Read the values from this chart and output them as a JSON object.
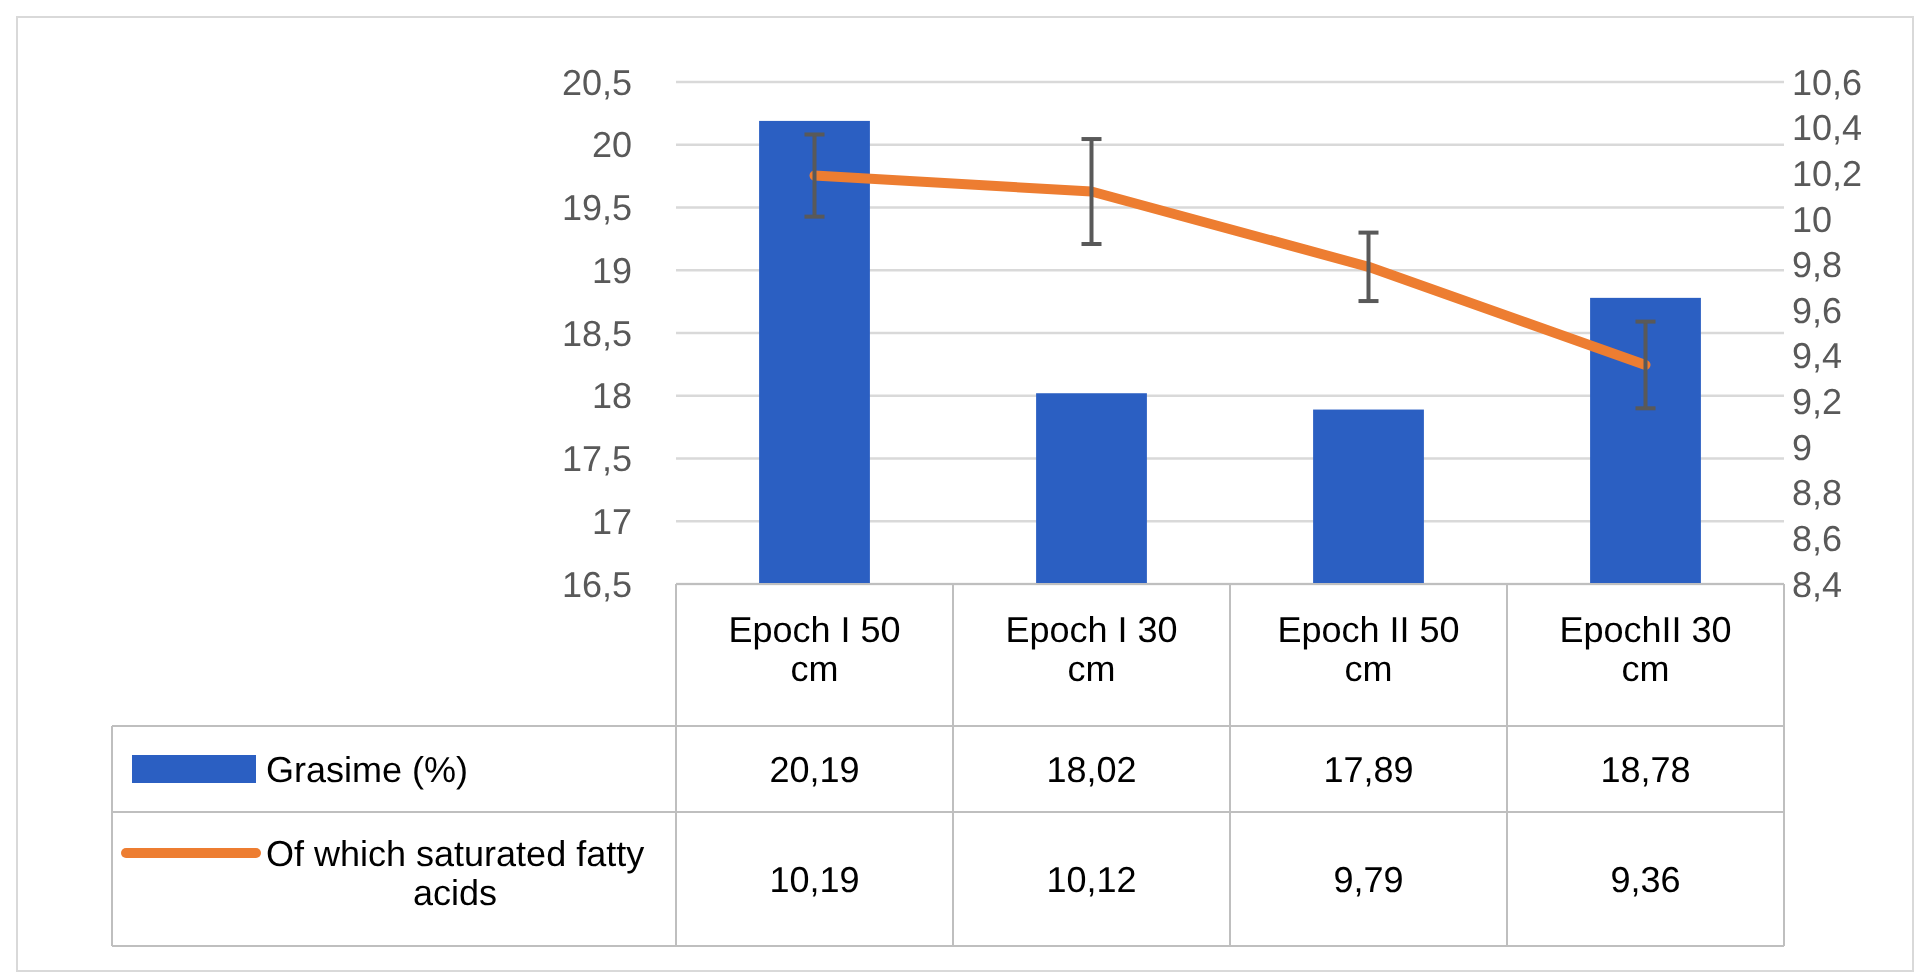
{
  "chart_data": {
    "type": "bar",
    "categories": [
      "Epoch I 50 cm",
      "Epoch I 30 cm",
      "Epoch II 50 cm",
      "EpochII 30 cm"
    ],
    "series": [
      {
        "name": "Grasime (%)",
        "color": "#2b5fc2",
        "values": [
          20.19,
          18.02,
          17.89,
          18.78
        ],
        "value_labels": [
          "20,19",
          "18,02",
          "17,89",
          "18,78"
        ]
      },
      {
        "name": "Of which saturated fatty acids",
        "type": "line",
        "axis": "y2",
        "color": "#ed7d31",
        "values": [
          10.19,
          10.12,
          9.79,
          9.36
        ],
        "errors": [
          0.18,
          0.23,
          0.15,
          0.19
        ],
        "value_labels": [
          "10,19",
          "10,12",
          "9,79",
          "9,36"
        ]
      }
    ],
    "ylim": [
      16.5,
      20.5
    ],
    "yticks": [
      {
        "value": 16.5,
        "label": "16,5"
      },
      17,
      {
        "value": 17.5,
        "label": "17,5"
      },
      18,
      {
        "value": 18.5,
        "label": "18,5"
      },
      19,
      {
        "value": 19.5,
        "label": "19,5"
      },
      20,
      {
        "value": 20.5,
        "label": "20,5"
      }
    ],
    "y2lim": [
      8.4,
      10.6
    ],
    "y2ticks": [
      {
        "value": 8.4,
        "label": "8,4"
      },
      {
        "value": 8.6,
        "label": "8,6"
      },
      {
        "value": 8.8,
        "label": "8,8"
      },
      9,
      {
        "value": 9.2,
        "label": "9,2"
      },
      {
        "value": 9.4,
        "label": "9,4"
      },
      {
        "value": 9.6,
        "label": "9,6"
      },
      {
        "value": 9.8,
        "label": "9,8"
      },
      10,
      {
        "value": 10.2,
        "label": "10,2"
      },
      {
        "value": 10.4,
        "label": "10,4"
      },
      {
        "value": 10.6,
        "label": "10,6"
      }
    ],
    "grid": "y",
    "legend": "bottom",
    "marker": "none",
    "line_style": "solid"
  }
}
